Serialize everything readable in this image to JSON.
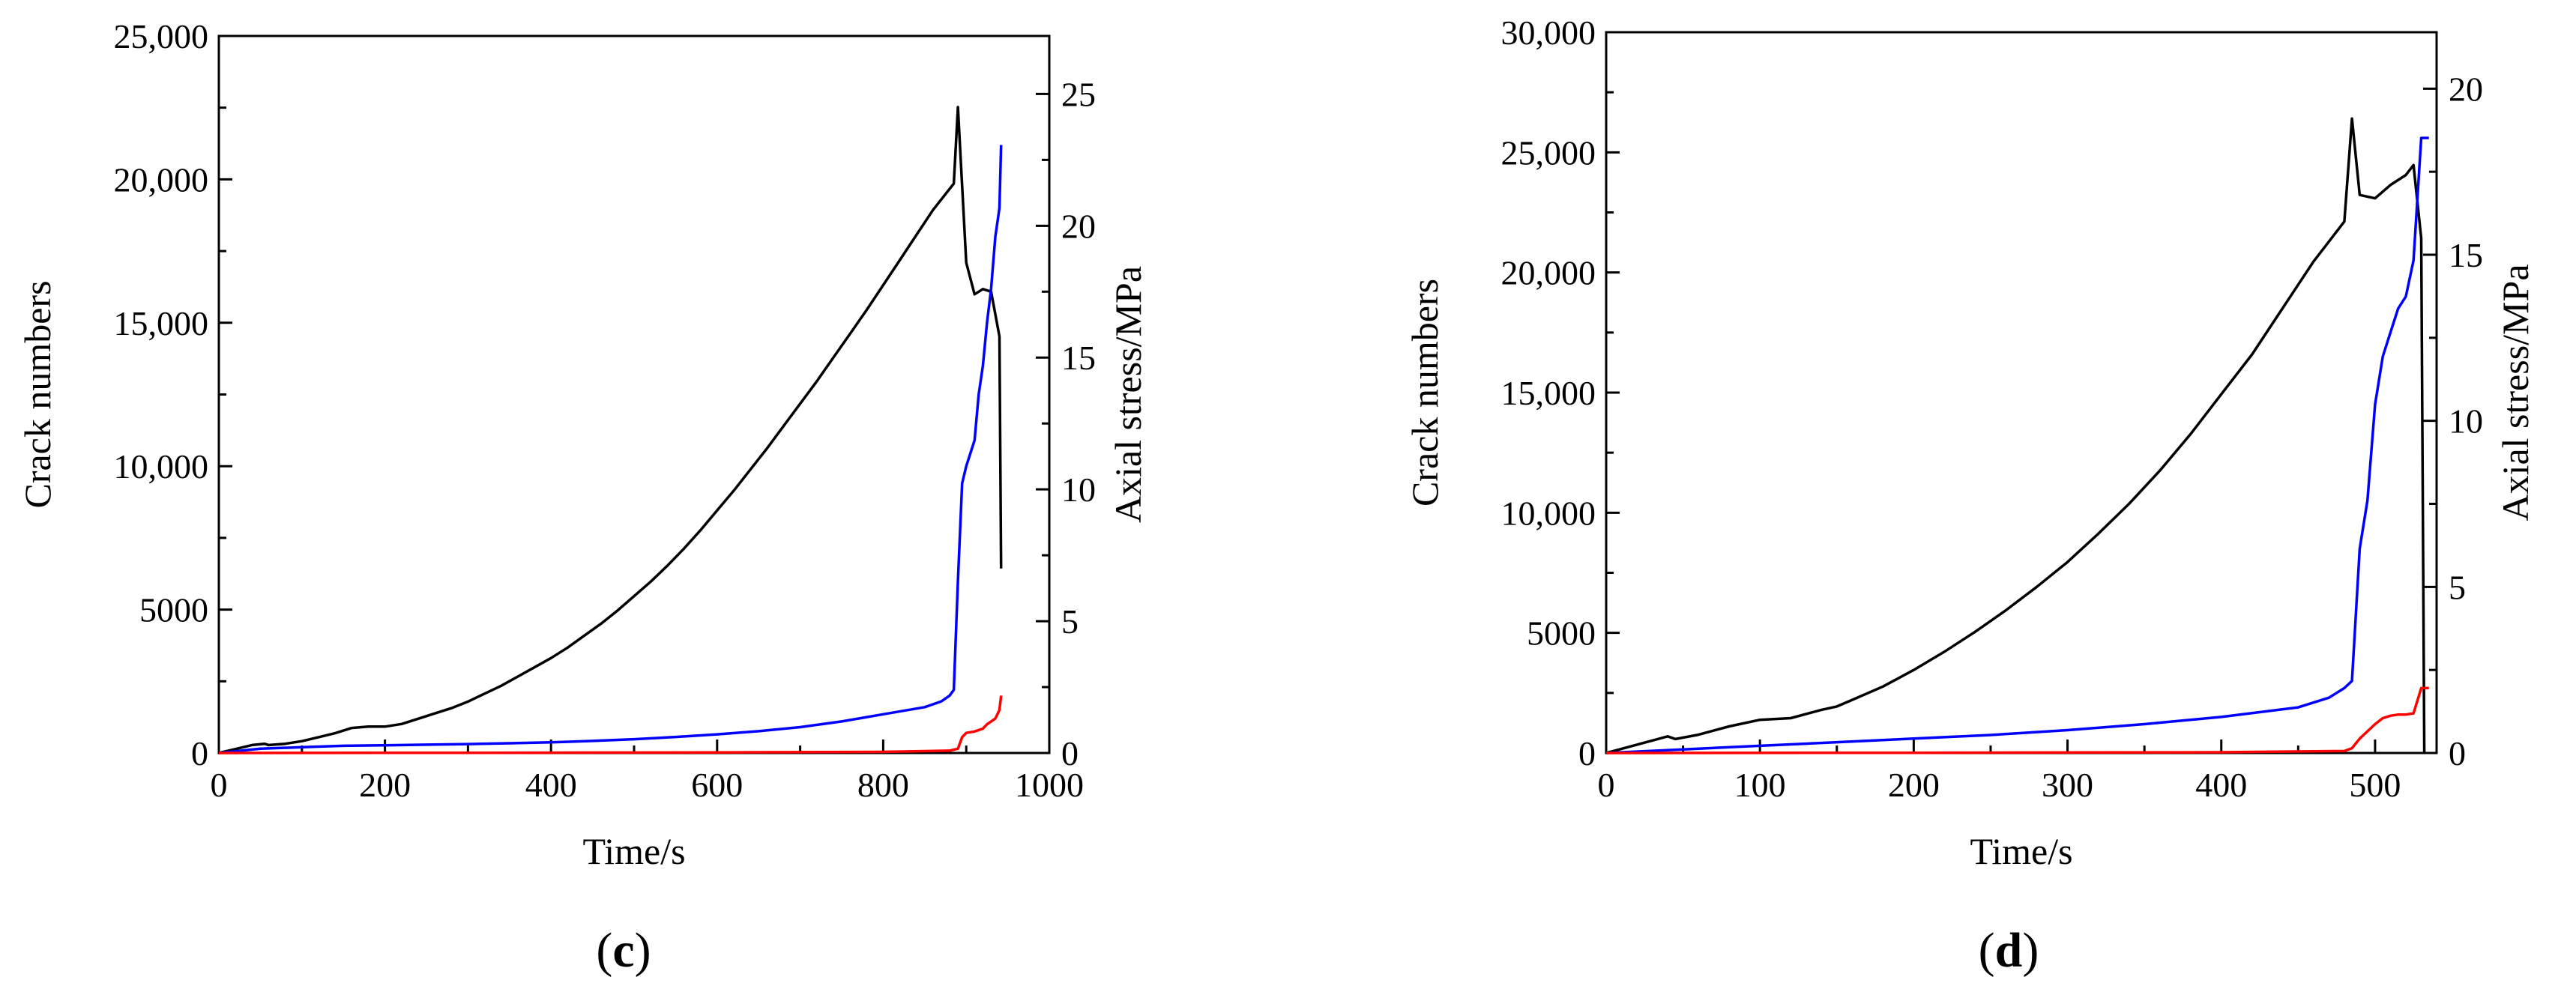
{
  "chart_data": [
    {
      "type": "line",
      "panel_label": "c",
      "xlabel": "Time/s",
      "ylabel": "Crack numbers",
      "y2label": "Axial stress/MPa",
      "xlim": [
        0,
        1000
      ],
      "ylim": [
        0,
        25000
      ],
      "y2lim": [
        0,
        27.2
      ],
      "x_ticks": [
        0,
        200,
        400,
        600,
        800,
        1000
      ],
      "x_tick_labels": [
        "0",
        "200",
        "400",
        "600",
        "800",
        "1000"
      ],
      "y_ticks": [
        0,
        5000,
        10000,
        15000,
        20000,
        25000
      ],
      "y_tick_labels": [
        "0",
        "5000",
        "10,000",
        "15,000",
        "20,000",
        "25,000"
      ],
      "y2_ticks": [
        0,
        5,
        10,
        15,
        20,
        25
      ],
      "y2_tick_labels": [
        "0",
        "5",
        "10",
        "15",
        "20",
        "25"
      ],
      "grid": false,
      "series": [
        {
          "color": "#000000",
          "axis": "right",
          "x": [
            0,
            20,
            40,
            55,
            60,
            80,
            100,
            120,
            140,
            160,
            180,
            200,
            220,
            240,
            260,
            280,
            300,
            320,
            340,
            360,
            380,
            400,
            420,
            440,
            460,
            480,
            500,
            520,
            540,
            560,
            580,
            600,
            620,
            640,
            660,
            680,
            700,
            720,
            740,
            760,
            780,
            800,
            820,
            840,
            860,
            885,
            890,
            900,
            910,
            920,
            930,
            940,
            942
          ],
          "y": [
            0,
            0.15,
            0.3,
            0.35,
            0.3,
            0.35,
            0.45,
            0.6,
            0.75,
            0.95,
            1.0,
            1.0,
            1.1,
            1.3,
            1.5,
            1.7,
            1.95,
            2.25,
            2.55,
            2.9,
            3.25,
            3.6,
            4.0,
            4.45,
            4.9,
            5.4,
            5.95,
            6.5,
            7.1,
            7.75,
            8.45,
            9.2,
            9.95,
            10.75,
            11.55,
            12.4,
            13.25,
            14.1,
            15.0,
            15.9,
            16.8,
            17.75,
            18.7,
            19.65,
            20.6,
            21.6,
            24.5,
            18.6,
            17.4,
            17.6,
            17.5,
            15.8,
            7.0
          ]
        },
        {
          "color": "#0000ff",
          "axis": "left",
          "x": [
            0,
            50,
            100,
            150,
            200,
            250,
            300,
            350,
            400,
            450,
            500,
            550,
            600,
            650,
            700,
            750,
            800,
            850,
            870,
            880,
            885,
            890,
            895,
            900,
            910,
            915,
            920,
            925,
            930,
            935,
            940,
            942
          ],
          "y": [
            0,
            150,
            200,
            250,
            270,
            290,
            310,
            340,
            370,
            420,
            480,
            560,
            650,
            760,
            900,
            1100,
            1350,
            1600,
            1800,
            2000,
            2200,
            6000,
            9400,
            10000,
            10900,
            12500,
            13500,
            15000,
            16200,
            18000,
            19000,
            21200
          ]
        },
        {
          "color": "#ff0000",
          "axis": "left",
          "x": [
            0,
            200,
            400,
            600,
            800,
            880,
            890,
            895,
            900,
            910,
            920,
            925,
            930,
            935,
            940,
            942
          ],
          "y": [
            0,
            5,
            10,
            20,
            40,
            80,
            150,
            550,
            700,
            750,
            850,
            1000,
            1100,
            1200,
            1500,
            2000
          ]
        }
      ]
    },
    {
      "type": "line",
      "panel_label": "d",
      "xlabel": "Time/s",
      "ylabel": "Crack numbers",
      "y2label": "Axial stress/MPa",
      "xlim": [
        0,
        540
      ],
      "ylim": [
        0,
        30000
      ],
      "y2lim": [
        0,
        21.7
      ],
      "x_ticks": [
        0,
        100,
        200,
        300,
        400,
        500
      ],
      "x_tick_labels": [
        "0",
        "100",
        "200",
        "300",
        "400",
        "500"
      ],
      "y_ticks": [
        0,
        5000,
        10000,
        15000,
        20000,
        25000,
        30000
      ],
      "y_tick_labels": [
        "0",
        "5000",
        "10,000",
        "15,000",
        "20,000",
        "25,000",
        "30,000"
      ],
      "y2_ticks": [
        0,
        5,
        10,
        15,
        20
      ],
      "y2_tick_labels": [
        "0",
        "5",
        "10",
        "15",
        "20"
      ],
      "grid": false,
      "series": [
        {
          "color": "#000000",
          "axis": "right",
          "x": [
            0,
            20,
            40,
            45,
            60,
            80,
            100,
            120,
            140,
            150,
            160,
            180,
            200,
            220,
            240,
            260,
            280,
            300,
            320,
            340,
            360,
            380,
            400,
            420,
            440,
            460,
            480,
            485,
            490,
            500,
            510,
            520,
            525,
            530,
            532
          ],
          "y": [
            0,
            0.25,
            0.5,
            0.42,
            0.55,
            0.8,
            1.0,
            1.05,
            1.3,
            1.4,
            1.6,
            2.0,
            2.5,
            3.05,
            3.65,
            4.3,
            5.0,
            5.75,
            6.6,
            7.5,
            8.5,
            9.6,
            10.8,
            12.0,
            13.4,
            14.8,
            16.0,
            19.1,
            16.8,
            16.7,
            17.1,
            17.4,
            17.7,
            15.5,
            0
          ]
        },
        {
          "color": "#0000ff",
          "axis": "left",
          "x": [
            0,
            50,
            100,
            150,
            200,
            250,
            300,
            350,
            400,
            450,
            470,
            480,
            485,
            490,
            495,
            500,
            505,
            510,
            515,
            520,
            525,
            530,
            535
          ],
          "y": [
            0,
            150,
            300,
            450,
            600,
            750,
            950,
            1200,
            1500,
            1900,
            2300,
            2700,
            3000,
            8500,
            10500,
            14500,
            16500,
            17500,
            18500,
            19000,
            20500,
            25600,
            25600
          ]
        },
        {
          "color": "#ff0000",
          "axis": "left",
          "x": [
            0,
            200,
            400,
            480,
            485,
            490,
            495,
            500,
            505,
            510,
            515,
            520,
            525,
            530,
            535
          ],
          "y": [
            0,
            10,
            30,
            80,
            200,
            600,
            900,
            1200,
            1450,
            1550,
            1600,
            1600,
            1650,
            2700,
            2700
          ]
        }
      ]
    }
  ]
}
